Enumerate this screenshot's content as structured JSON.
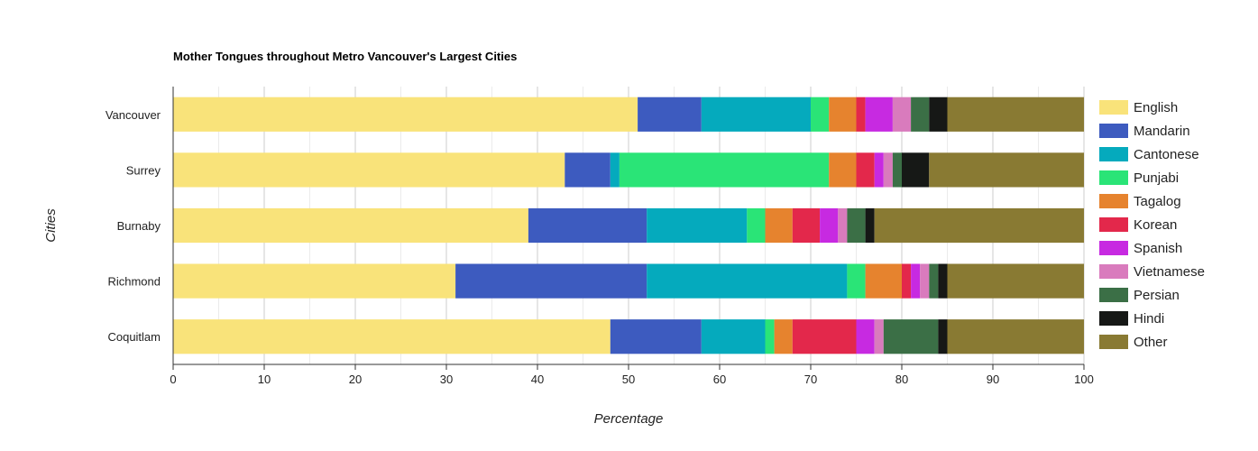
{
  "chart_data": {
    "type": "bar",
    "orientation": "horizontal",
    "stacked": true,
    "title": "Mother Tongues throughout Metro Vancouver's Largest Cities",
    "xlabel": "Percentage",
    "ylabel": "Cities",
    "xlim": [
      0,
      100
    ],
    "xticks": [
      "0",
      "10",
      "20",
      "30",
      "40",
      "50",
      "60",
      "70",
      "80",
      "90",
      "100"
    ],
    "grid": true,
    "legend_position": "right",
    "categories": [
      "Vancouver",
      "Surrey",
      "Burnaby",
      "Richmond",
      "Coquitlam"
    ],
    "series": [
      {
        "name": "English",
        "color": "#f9e37a",
        "values": [
          51,
          43,
          39,
          31,
          48
        ]
      },
      {
        "name": "Mandarin",
        "color": "#3d5bbf",
        "values": [
          7,
          5,
          13,
          21,
          10
        ]
      },
      {
        "name": "Cantonese",
        "color": "#05aabd",
        "values": [
          12,
          1,
          11,
          22,
          7
        ]
      },
      {
        "name": "Punjabi",
        "color": "#2ae477",
        "values": [
          2,
          23,
          2,
          2,
          1
        ]
      },
      {
        "name": "Tagalog",
        "color": "#e6832e",
        "values": [
          3,
          3,
          3,
          4,
          2
        ]
      },
      {
        "name": "Korean",
        "color": "#e3284b",
        "values": [
          1,
          2,
          3,
          1,
          7
        ]
      },
      {
        "name": "Spanish",
        "color": "#c72ae1",
        "values": [
          3,
          1,
          2,
          1,
          2
        ]
      },
      {
        "name": "Vietnamese",
        "color": "#d97bbd",
        "values": [
          2,
          1,
          1,
          1,
          1
        ]
      },
      {
        "name": "Persian",
        "color": "#3b6f46",
        "values": [
          2,
          1,
          2,
          1,
          6
        ]
      },
      {
        "name": "Hindi",
        "color": "#161816",
        "values": [
          2,
          3,
          1,
          1,
          1
        ]
      },
      {
        "name": "Other",
        "color": "#897a33",
        "values": [
          15,
          17,
          23,
          15,
          15
        ]
      }
    ]
  }
}
